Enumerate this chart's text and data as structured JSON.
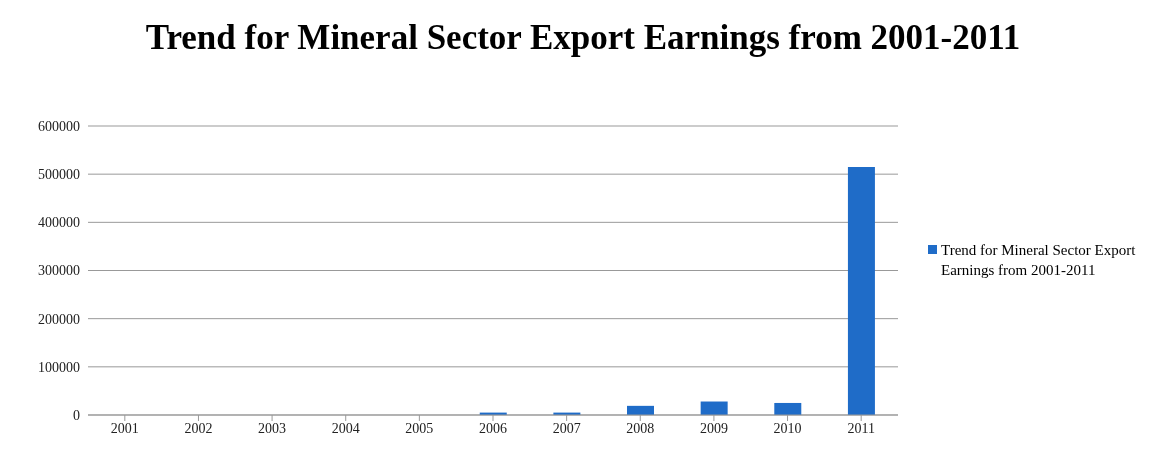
{
  "chart_data": {
    "type": "bar",
    "title": "Trend for Mineral Sector Export Earnings from 2001-2011",
    "categories": [
      "2001",
      "2002",
      "2003",
      "2004",
      "2005",
      "2006",
      "2007",
      "2008",
      "2009",
      "2010",
      "2011"
    ],
    "series": [
      {
        "name": "Trend for Mineral Sector Export Earnings from 2001-2011",
        "color": "#1f6cc8",
        "values": [
          0,
          0,
          0,
          0,
          0,
          5000,
          5000,
          19000,
          28000,
          25000,
          515000
        ]
      }
    ],
    "ylim": [
      0,
      600000
    ],
    "yticks": [
      0,
      100000,
      200000,
      300000,
      400000,
      500000,
      600000
    ],
    "grid": "y",
    "legend": "right"
  }
}
